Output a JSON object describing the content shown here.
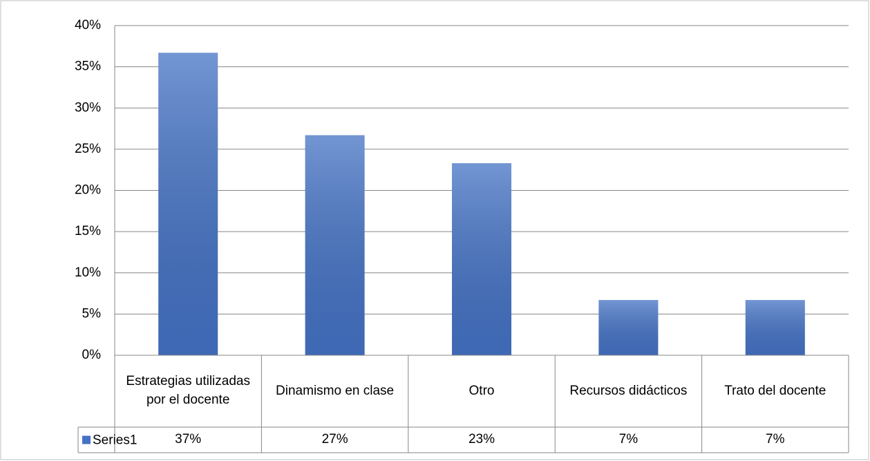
{
  "chart_data": {
    "type": "bar",
    "categories": [
      "Estrategias utilizadas por el docente",
      "Dinamismo en clase",
      "Otro",
      "Recursos didácticos",
      "Trato del docente"
    ],
    "series": [
      {
        "name": "Series1",
        "color": "#4472c4",
        "values": [
          36.7,
          26.7,
          23.3,
          6.7,
          6.7
        ],
        "value_labels": [
          "37%",
          "27%",
          "23%",
          "7%",
          "7%"
        ]
      }
    ],
    "ylim": [
      0,
      40
    ],
    "yticks": [
      {
        "value": 0,
        "label": "0%"
      },
      {
        "value": 5,
        "label": "5%"
      },
      {
        "value": 10,
        "label": "10%"
      },
      {
        "value": 15,
        "label": "15%"
      },
      {
        "value": 20,
        "label": "20%"
      },
      {
        "value": 25,
        "label": "25%"
      },
      {
        "value": 30,
        "label": "30%"
      },
      {
        "value": 35,
        "label": "35%"
      },
      {
        "value": 40,
        "label": "40%"
      }
    ],
    "grid": true,
    "data_table": true
  }
}
